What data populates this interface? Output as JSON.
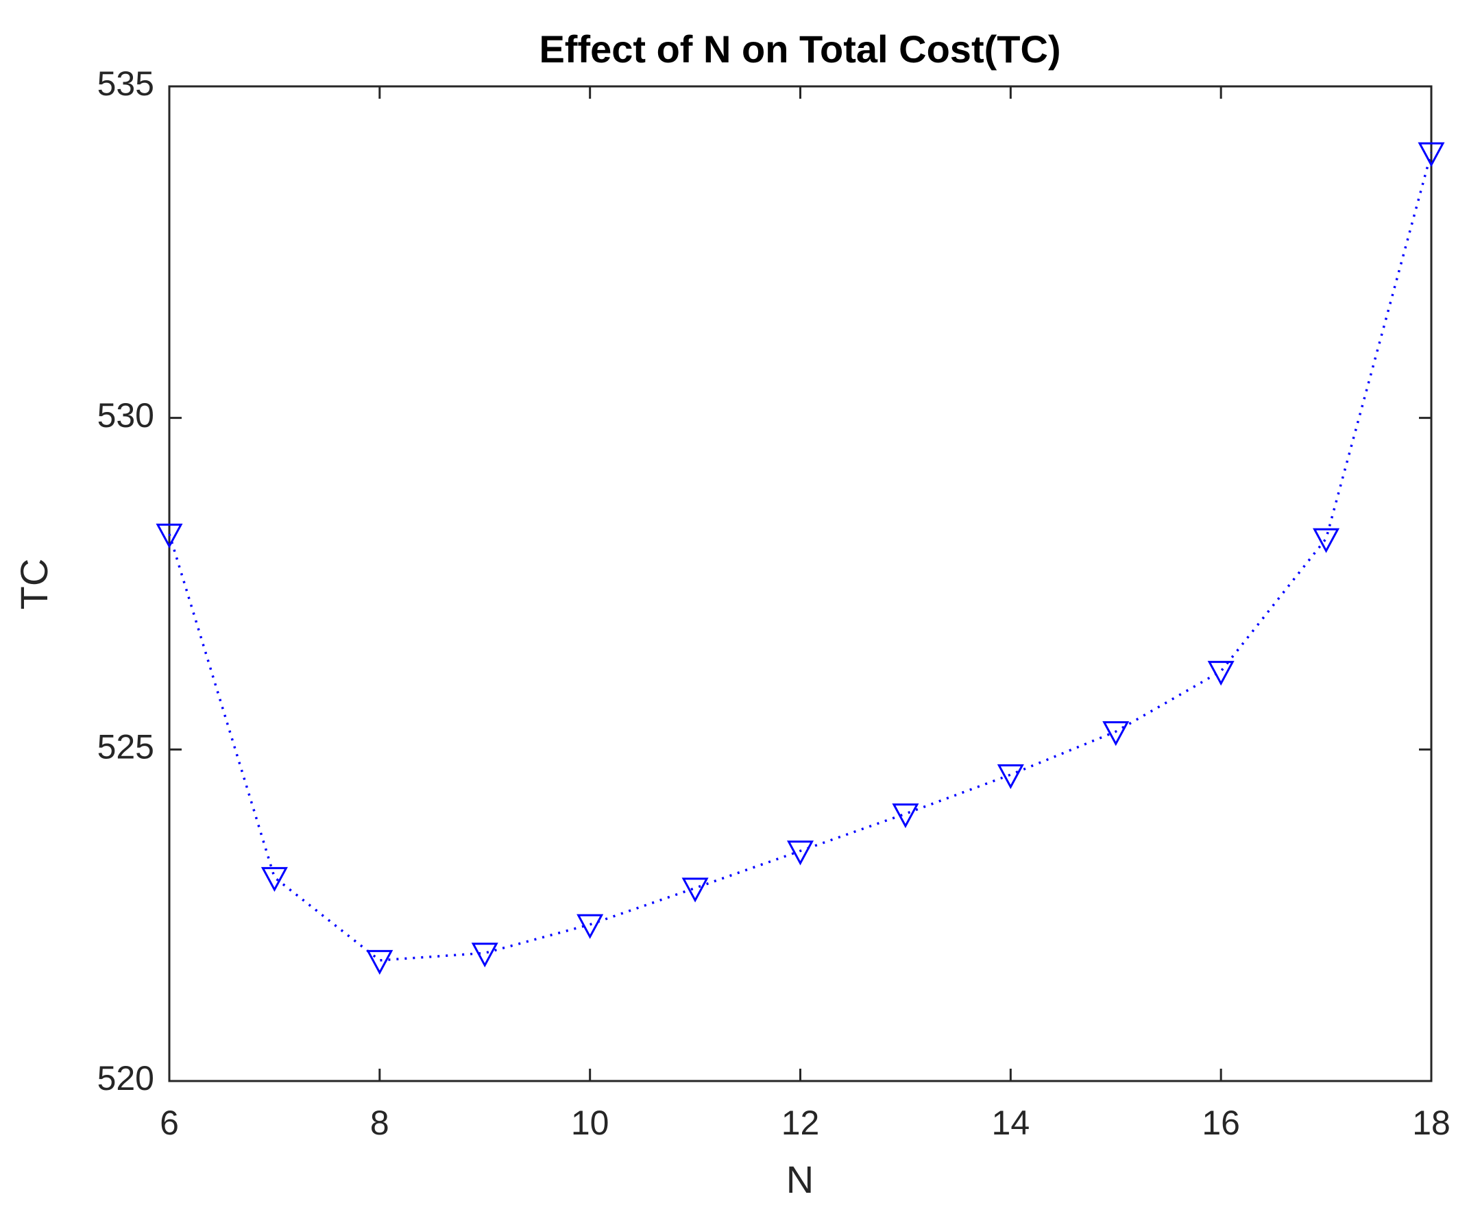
{
  "chart_data": {
    "type": "line",
    "title": "Effect of N on Total Cost(TC)",
    "x_label": "N",
    "y_label": "TC",
    "x": [
      6,
      7,
      8,
      9,
      10,
      11,
      12,
      13,
      14,
      15,
      16,
      17,
      18
    ],
    "series": [
      {
        "name": "TC",
        "color": "#0000ff",
        "values": [
          528.25,
          523.07,
          521.82,
          521.93,
          522.36,
          522.91,
          523.47,
          524.03,
          524.62,
          525.27,
          526.18,
          528.18,
          534.0
        ]
      }
    ],
    "xlim": [
      6,
      18
    ],
    "xticks": [
      6,
      8,
      10,
      12,
      14,
      16,
      18
    ],
    "ylim": [
      520,
      535
    ],
    "yticks": [
      520,
      525,
      530,
      535
    ],
    "grid": false,
    "legend": false,
    "line_style": "dotted",
    "marker": "triangle-down"
  }
}
